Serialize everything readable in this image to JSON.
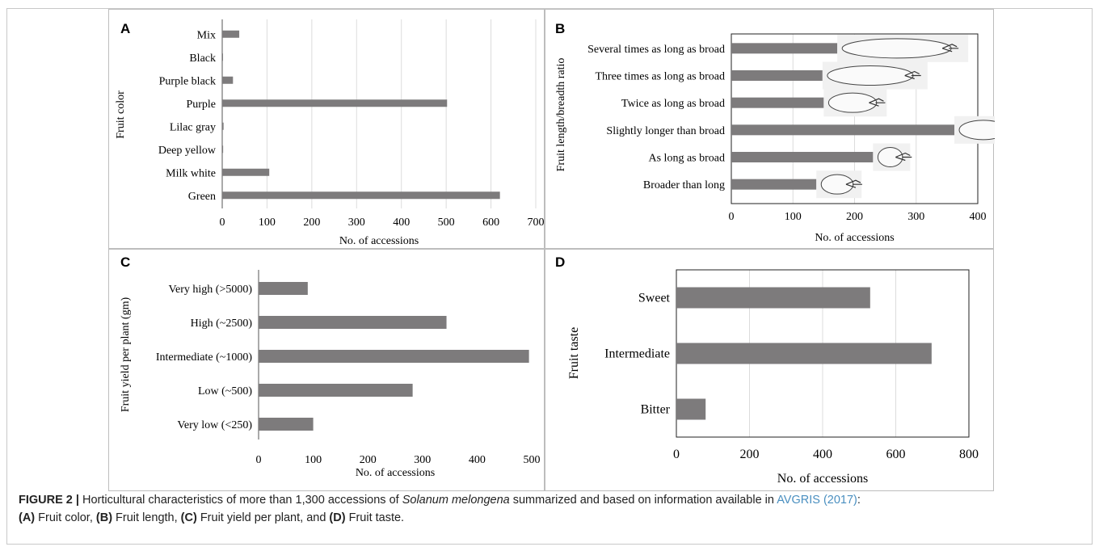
{
  "panels": [
    {
      "letter": "A",
      "chart_data": {
        "type": "bar",
        "orientation": "horizontal",
        "categories": [
          "Mix",
          "Black",
          "Purple black",
          "Purple",
          "Lilac gray",
          "Deep yellow",
          "Milk white",
          "Green"
        ],
        "values": [
          38,
          1,
          24,
          502,
          3,
          2,
          105,
          620
        ],
        "xlabel": "No. of accessions",
        "ylabel": "Fruit color",
        "xlim": [
          0,
          700
        ],
        "xticks": [
          0,
          100,
          200,
          300,
          400,
          500,
          600,
          700
        ],
        "grid": "vertical",
        "bar_color": "#7d7b7c"
      }
    },
    {
      "letter": "B",
      "chart_data": {
        "type": "bar",
        "orientation": "horizontal",
        "categories": [
          "Several times as long as broad",
          "Three times as long as broad",
          "Twice as long as broad",
          "Slightly longer than broad",
          "As long as broad",
          "Broader than long"
        ],
        "values": [
          172,
          148,
          150,
          362,
          230,
          138
        ],
        "xlabel": "No. of accessions",
        "ylabel": "Fruit length/breadth ratio",
        "xlim": [
          0,
          400
        ],
        "xticks": [
          0,
          100,
          200,
          300,
          400
        ],
        "grid": "vertical",
        "bar_color": "#7d7b7c",
        "fruit_illustrations": true
      }
    },
    {
      "letter": "C",
      "chart_data": {
        "type": "bar",
        "orientation": "horizontal",
        "categories": [
          "Very high (>5000)",
          "High (~2500)",
          "Intermediate (~1000)",
          "Low (~500)",
          "Very low (<250)"
        ],
        "values": [
          90,
          344,
          495,
          282,
          100
        ],
        "xlabel": "No. of accessions",
        "ylabel": "Fruit yield per plant (gm)",
        "xlim": [
          0,
          500
        ],
        "xticks": [
          0,
          100,
          200,
          300,
          400,
          500
        ],
        "grid": "none",
        "bar_color": "#7d7b7c"
      }
    },
    {
      "letter": "D",
      "chart_data": {
        "type": "bar",
        "orientation": "horizontal",
        "categories": [
          "Sweet",
          "Intermediate",
          "Bitter"
        ],
        "values": [
          530,
          698,
          80
        ],
        "xlabel": "No. of accessions",
        "ylabel": "Fruit taste",
        "xlim": [
          0,
          800
        ],
        "xticks": [
          0,
          200,
          400,
          600,
          800
        ],
        "grid": "vertical",
        "bar_color": "#7d7b7c"
      }
    }
  ],
  "caption": {
    "figure_label": "FIGURE 2 |",
    "text1": " Horticultural characteristics of more than 1,300 accessions of ",
    "species": "Solanum melongena",
    "text2": " summarized and based on information available in ",
    "link": "AVGRIS (2017)",
    "text3": ":",
    "a_label": "(A)",
    "a_text": " Fruit color, ",
    "b_label": "(B)",
    "b_text": " Fruit length, ",
    "c_label": "(C)",
    "c_text": " Fruit yield per plant, and ",
    "d_label": "(D)",
    "d_text": " Fruit taste."
  }
}
